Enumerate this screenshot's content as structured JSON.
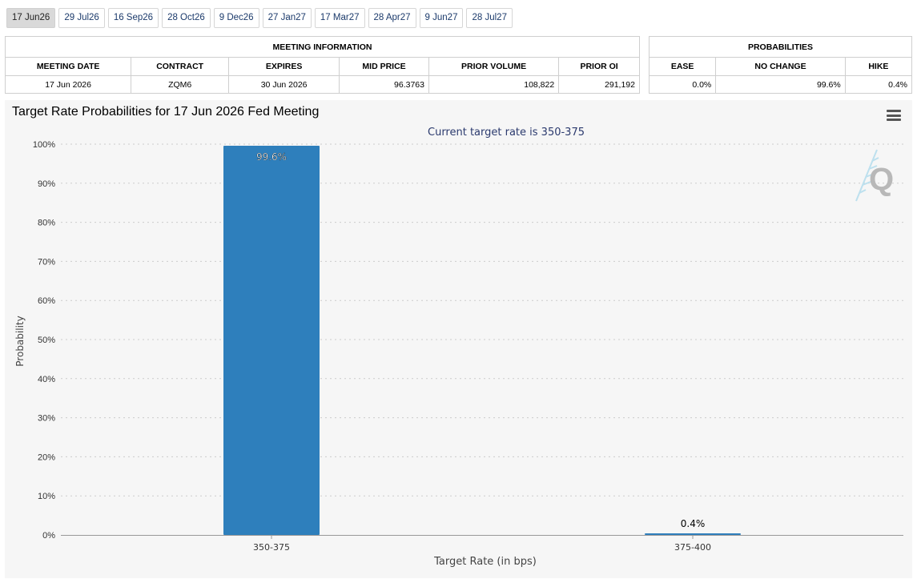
{
  "tabs": [
    {
      "label": "17 Jun26",
      "active": true
    },
    {
      "label": "29 Jul26",
      "active": false
    },
    {
      "label": "16 Sep26",
      "active": false
    },
    {
      "label": "28 Oct26",
      "active": false
    },
    {
      "label": "9 Dec26",
      "active": false
    },
    {
      "label": "27 Jan27",
      "active": false
    },
    {
      "label": "17 Mar27",
      "active": false
    },
    {
      "label": "28 Apr27",
      "active": false
    },
    {
      "label": "9 Jun27",
      "active": false
    },
    {
      "label": "28 Jul27",
      "active": false
    }
  ],
  "meeting_info": {
    "title": "MEETING INFORMATION",
    "headers": {
      "meeting_date": "MEETING DATE",
      "contract": "CONTRACT",
      "expires": "EXPIRES",
      "mid_price": "MID PRICE",
      "prior_volume": "PRIOR VOLUME",
      "prior_oi": "PRIOR OI"
    },
    "values": {
      "meeting_date": "17 Jun 2026",
      "contract": "ZQM6",
      "expires": "30 Jun 2026",
      "mid_price": "96.3763",
      "prior_volume": "108,822",
      "prior_oi": "291,192"
    }
  },
  "probabilities": {
    "title": "PROBABILITIES",
    "headers": {
      "ease": "EASE",
      "no_change": "NO CHANGE",
      "hike": "HIKE"
    },
    "values": {
      "ease": "0.0%",
      "no_change": "99.6%",
      "hike": "0.4%"
    }
  },
  "chart": {
    "title": "Target Rate Probabilities for 17 Jun 2026 Fed Meeting",
    "subtitle": "Current target rate is 350-375",
    "watermark": "Q"
  },
  "colors": {
    "bar": "#2e7fbc",
    "subtitle": "#2b3a6e",
    "grid": "#cccccc"
  },
  "chart_data": {
    "type": "bar",
    "categories": [
      "350-375",
      "375-400"
    ],
    "values": [
      99.6,
      0.4
    ],
    "data_labels": [
      "99.6%",
      "0.4%"
    ],
    "xlabel": "Target Rate (in bps)",
    "ylabel": "Probability",
    "ylim": [
      0,
      100
    ],
    "yticks": [
      "0%",
      "10%",
      "20%",
      "30%",
      "40%",
      "50%",
      "60%",
      "70%",
      "80%",
      "90%",
      "100%"
    ],
    "grid": true
  }
}
